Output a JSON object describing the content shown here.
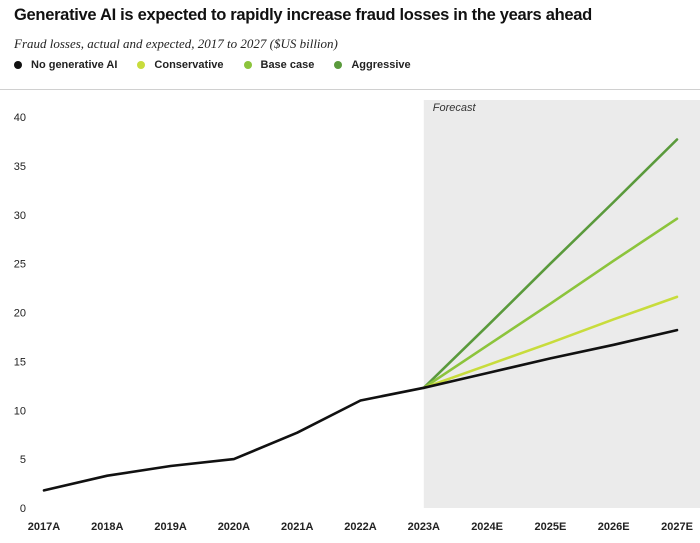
{
  "chart_data": {
    "type": "line",
    "title": "Generative AI is expected to rapidly increase fraud losses in the years ahead",
    "subtitle": "Fraud losses, actual and expected, 2017 to 2027 ($US billion)",
    "categories": [
      "2017A",
      "2018A",
      "2019A",
      "2020A",
      "2021A",
      "2022A",
      "2023A",
      "2024E",
      "2025E",
      "2026E",
      "2027E"
    ],
    "ylim": [
      0,
      40
    ],
    "yticks": [
      0,
      5,
      10,
      15,
      20,
      25,
      30,
      35,
      40
    ],
    "grid": false,
    "forecast_label": "Forecast",
    "forecast_start_index": 6,
    "series": [
      {
        "name": "No generative AI",
        "color": "#111111",
        "values": [
          1.8,
          3.3,
          4.3,
          5.0,
          7.7,
          11.0,
          12.3,
          13.8,
          15.3,
          16.7,
          18.2
        ]
      },
      {
        "name": "Conservative",
        "color": "#c8dc3c",
        "values": [
          null,
          null,
          null,
          null,
          null,
          null,
          12.3,
          14.6,
          16.9,
          19.3,
          21.6
        ]
      },
      {
        "name": "Base case",
        "color": "#8cc43c",
        "values": [
          null,
          null,
          null,
          null,
          null,
          null,
          12.3,
          16.6,
          20.9,
          25.3,
          29.6
        ]
      },
      {
        "name": "Aggressive",
        "color": "#5a9a3c",
        "values": [
          null,
          null,
          null,
          null,
          null,
          null,
          12.3,
          18.6,
          25.0,
          31.3,
          37.7
        ]
      }
    ]
  }
}
